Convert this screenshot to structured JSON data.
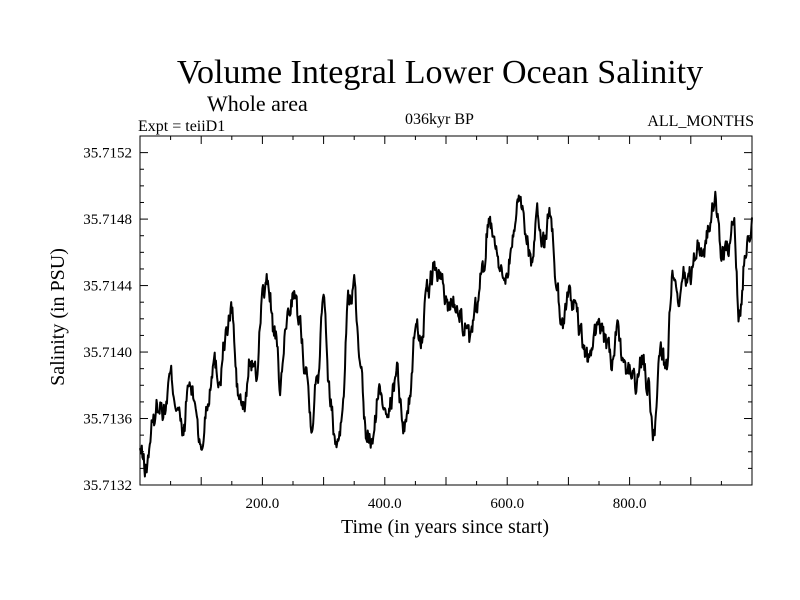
{
  "chart_data": {
    "type": "line",
    "title": "Volume Integral Lower Ocean Salinity",
    "subtitle": "Whole area",
    "left_note": "Expt = teiiD1",
    "center_note": "036kyr BP",
    "right_note": "ALL_MONTHS",
    "xlabel": "Time (in years since start)",
    "ylabel": "Salinity (in PSU)",
    "xlim": [
      0,
      1000
    ],
    "ylim": [
      35.7132,
      35.7153
    ],
    "xticks": [
      200,
      400,
      600,
      800
    ],
    "xtick_labels": [
      "200.0",
      "400.0",
      "600.0",
      "800.0"
    ],
    "yticks": [
      35.7132,
      35.7136,
      35.714,
      35.7144,
      35.7148,
      35.7152
    ],
    "ytick_labels": [
      "35.7132",
      "35.7136",
      "35.7140",
      "35.7144",
      "35.7148",
      "35.7152"
    ],
    "grid": false,
    "series": [
      {
        "color": "#000000",
        "x": [
          0,
          10,
          20,
          30,
          40,
          50,
          60,
          70,
          80,
          90,
          100,
          110,
          120,
          130,
          140,
          150,
          160,
          170,
          180,
          190,
          200,
          210,
          220,
          230,
          240,
          250,
          260,
          270,
          280,
          290,
          300,
          310,
          320,
          330,
          340,
          350,
          360,
          370,
          380,
          390,
          400,
          410,
          420,
          430,
          440,
          450,
          460,
          470,
          480,
          490,
          500,
          510,
          520,
          530,
          540,
          550,
          560,
          570,
          580,
          590,
          600,
          610,
          620,
          630,
          640,
          650,
          660,
          670,
          680,
          690,
          700,
          710,
          720,
          730,
          740,
          750,
          760,
          770,
          780,
          790,
          800,
          810,
          820,
          830,
          840,
          850,
          860,
          870,
          880,
          890,
          900,
          910,
          920,
          930,
          940,
          950,
          960,
          970,
          980,
          990,
          1000
        ],
        "y": [
          35.7134,
          35.7133,
          35.71355,
          35.7137,
          35.71365,
          35.71385,
          35.7137,
          35.7135,
          35.7138,
          35.7137,
          35.7134,
          35.7137,
          35.71395,
          35.71385,
          35.7141,
          35.71425,
          35.71375,
          35.71365,
          35.71395,
          35.71385,
          35.71435,
          35.7144,
          35.7141,
          35.7138,
          35.7142,
          35.71435,
          35.7142,
          35.71395,
          35.7136,
          35.71385,
          35.7144,
          35.71375,
          35.71345,
          35.7136,
          35.7143,
          35.7144,
          35.71385,
          35.7135,
          35.71345,
          35.71375,
          35.7137,
          35.7137,
          35.7139,
          35.71355,
          35.7137,
          35.71415,
          35.7141,
          35.71435,
          35.7145,
          35.71445,
          35.7143,
          35.7143,
          35.7143,
          35.71415,
          35.71405,
          35.71425,
          35.7145,
          35.7148,
          35.7147,
          35.71445,
          35.7145,
          35.7147,
          35.71495,
          35.71475,
          35.71455,
          35.7148,
          35.71465,
          35.71485,
          35.71445,
          35.71415,
          35.71435,
          35.7143,
          35.7141,
          35.71395,
          35.71405,
          35.7142,
          35.71405,
          35.71395,
          35.7141,
          35.7139,
          35.7139,
          35.7138,
          35.71395,
          35.7138,
          35.7135,
          35.71405,
          35.7139,
          35.71445,
          35.71425,
          35.71445,
          35.71445,
          35.71465,
          35.7146,
          35.71475,
          35.7149,
          35.7146,
          35.7146,
          35.71475,
          35.7142,
          35.71465,
          35.7148
        ]
      }
    ]
  }
}
